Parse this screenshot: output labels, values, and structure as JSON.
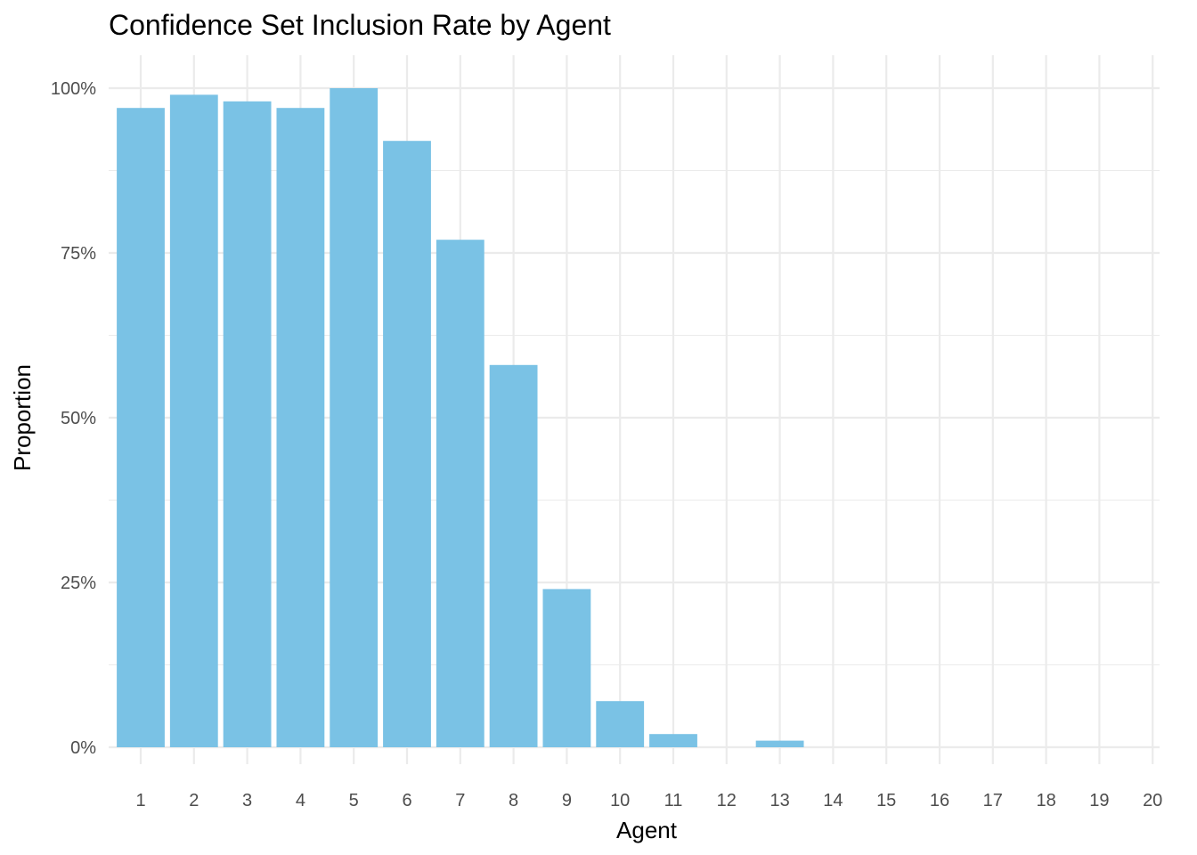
{
  "chart_data": {
    "type": "bar",
    "title": "Confidence Set Inclusion Rate by Agent",
    "xlabel": "Agent",
    "ylabel": "Proportion",
    "categories": [
      "1",
      "2",
      "3",
      "4",
      "5",
      "6",
      "7",
      "8",
      "9",
      "10",
      "11",
      "12",
      "13",
      "14",
      "15",
      "16",
      "17",
      "18",
      "19",
      "20"
    ],
    "values": [
      0.97,
      0.99,
      0.98,
      0.97,
      1.0,
      0.92,
      0.77,
      0.58,
      0.24,
      0.07,
      0.02,
      0.0,
      0.01,
      0.0,
      0.0,
      0.0,
      0.0,
      0.0,
      0.0,
      0.0
    ],
    "ylim": [
      0,
      1
    ],
    "yticks": [
      0,
      0.25,
      0.5,
      0.75,
      1.0
    ],
    "ytick_labels": [
      "0%",
      "25%",
      "50%",
      "75%",
      "100%"
    ],
    "bar_color": "#7AC2E5",
    "grid": true,
    "legend": "none"
  }
}
